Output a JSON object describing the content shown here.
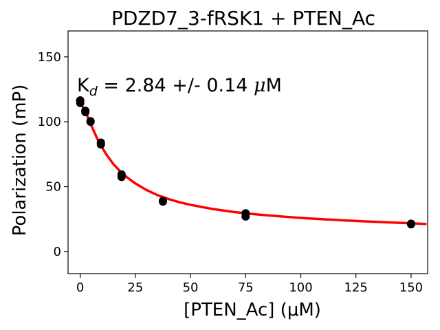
{
  "chart_data": {
    "type": "scatter",
    "title": "PDZD7_3-fRSK1 + PTEN_Ac",
    "xlabel": "[PTEN_Ac] (μM)",
    "ylabel": "Polarization (mP)",
    "xlim": [
      -5.5,
      157.5
    ],
    "ylim": [
      -17,
      170
    ],
    "xticks": [
      0,
      25,
      50,
      75,
      100,
      125,
      150
    ],
    "yticks": [
      0,
      50,
      100,
      150
    ],
    "grid": false,
    "annotation": {
      "prefix": "K",
      "subscript": "d",
      "middle": " = 2.84 +/- 0.14 ",
      "mu": "μ",
      "unit": "M"
    },
    "series": [
      {
        "marker_color": "#000000",
        "x": [
          0.0,
          0.0,
          2.34,
          2.34,
          4.69,
          4.69,
          9.38,
          9.38,
          18.75,
          18.75,
          37.5,
          37.5,
          75.0,
          75.0,
          150.0,
          150.0
        ],
        "y": [
          114.5,
          116.5,
          107.5,
          108.5,
          100.5,
          100.0,
          82.5,
          84.0,
          57.5,
          59.5,
          38.5,
          39.0,
          27.0,
          29.5,
          21.0,
          21.5
        ]
      }
    ],
    "fit": {
      "color": "#ff0000",
      "x": [
        0,
        2,
        4,
        6,
        8,
        10,
        12,
        15,
        18,
        21,
        25,
        30,
        35,
        40,
        45,
        50,
        60,
        70,
        80,
        90,
        100,
        110,
        120,
        130,
        140,
        150,
        157
      ],
      "y": [
        115.0,
        108.8,
        101.5,
        93.5,
        86.0,
        80.0,
        74.5,
        67.5,
        62.0,
        57.5,
        52.5,
        47.5,
        43.5,
        40.5,
        38.0,
        36.0,
        32.8,
        30.4,
        28.6,
        27.2,
        25.9,
        24.9,
        24.0,
        23.2,
        22.5,
        21.8,
        21.2
      ]
    }
  }
}
